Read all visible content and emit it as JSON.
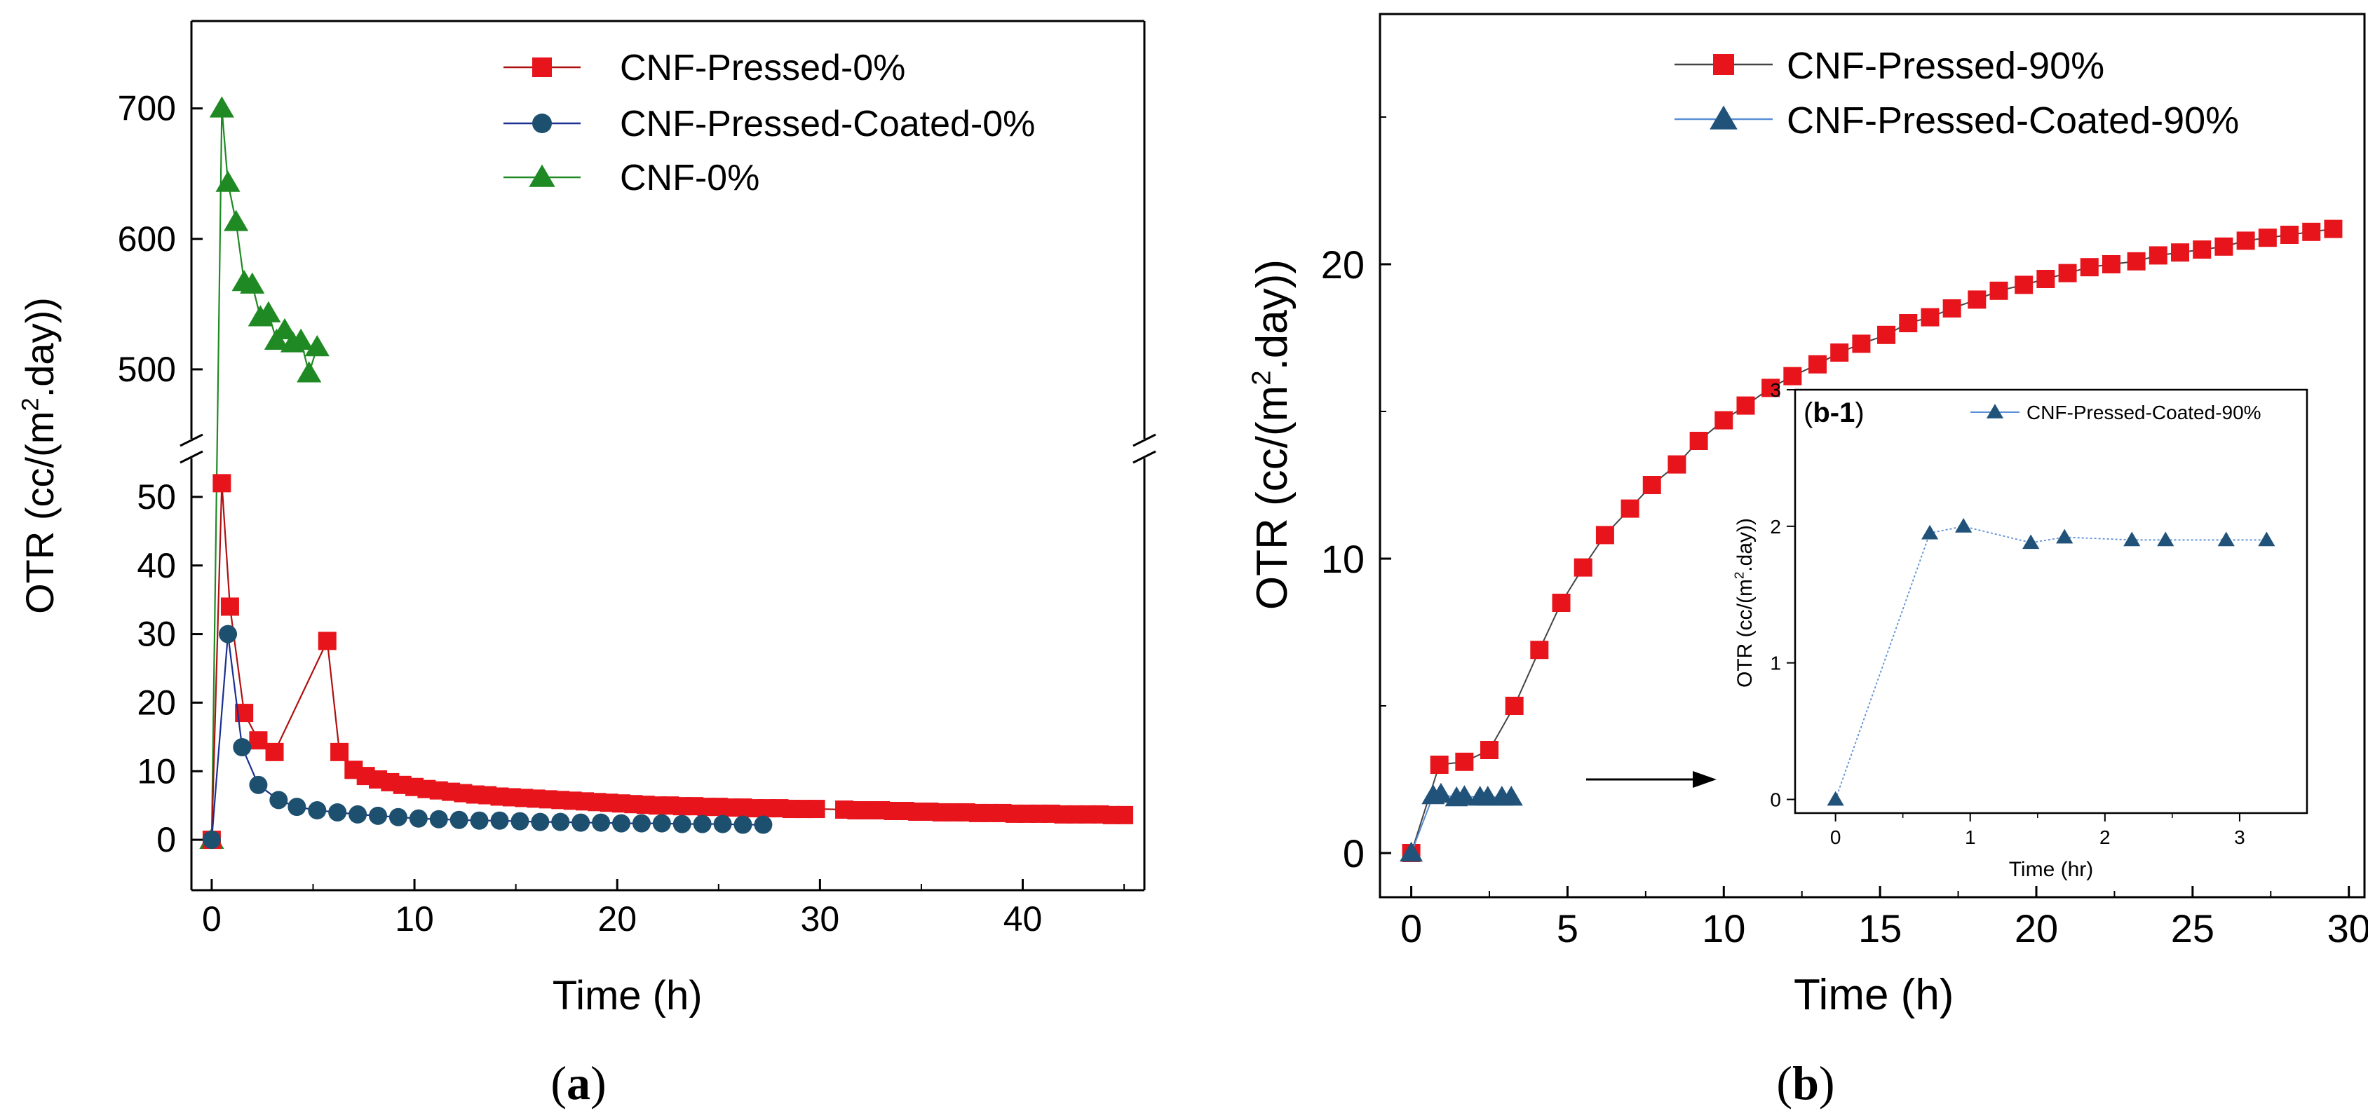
{
  "captions": {
    "a": "(a)",
    "b": "(b)"
  },
  "colors": {
    "red": "#e8141b",
    "red_line": "#b01010",
    "navy": "#1d4f6e",
    "navy_line": "#1a2f8f",
    "green": "#1f8a23",
    "steel": "#21527a",
    "inset_line": "#5b8fd6"
  },
  "chart_data": [
    {
      "id": "a",
      "type": "line",
      "xlabel": "Time (h)",
      "ylabel": "OTR (cc/(m².day))",
      "ylabel_parts": {
        "pre": "OTR (cc/(m",
        "sup": "2",
        "post": ".day))"
      },
      "xlim": [
        -1,
        46
      ],
      "xticks": [
        0,
        10,
        20,
        30,
        40
      ],
      "y_axis_break": {
        "lower_range": [
          -5,
          55
        ],
        "upper_range": [
          450,
          760
        ]
      },
      "yticks_lower": [
        0,
        10,
        20,
        30,
        40,
        50
      ],
      "yticks_upper": [
        500,
        600,
        700
      ],
      "legend_position": "top-right",
      "series": [
        {
          "name": "CNF-Pressed-0%",
          "marker": "square",
          "color": "#e8141b",
          "line_color": "#b01010",
          "x": [
            0,
            0.5,
            0.9,
            1.6,
            2.3,
            3.1,
            5.7,
            6.3,
            7.0,
            7.6,
            8.2,
            8.8,
            9.4,
            10.0,
            10.6,
            11.2,
            11.8,
            12.4,
            13.0,
            13.6,
            14.2,
            14.8,
            15.4,
            16.0,
            16.6,
            17.2,
            17.8,
            18.4,
            19.0,
            19.6,
            20.2,
            20.8,
            21.4,
            22.0,
            22.6,
            23.2,
            23.8,
            24.4,
            25.0,
            25.6,
            26.2,
            26.8,
            27.4,
            28.0,
            28.6,
            29.2,
            29.8,
            31.2,
            31.8,
            32.4,
            33.0,
            33.6,
            34.2,
            34.8,
            35.4,
            36.0,
            36.6,
            37.2,
            37.8,
            38.4,
            39.0,
            39.6,
            40.2,
            40.8,
            41.4,
            42.0,
            42.6,
            43.2,
            43.8,
            44.4,
            45.0
          ],
          "y": [
            0,
            52,
            34,
            18.5,
            14.5,
            12.8,
            29,
            12.8,
            10.2,
            9.3,
            8.8,
            8.4,
            8.0,
            7.7,
            7.4,
            7.2,
            7.0,
            6.8,
            6.6,
            6.5,
            6.3,
            6.2,
            6.1,
            6.0,
            5.9,
            5.8,
            5.7,
            5.6,
            5.5,
            5.4,
            5.3,
            5.2,
            5.1,
            5.0,
            5.0,
            4.9,
            4.9,
            4.8,
            4.8,
            4.7,
            4.7,
            4.6,
            4.6,
            4.6,
            4.5,
            4.5,
            4.5,
            4.4,
            4.3,
            4.3,
            4.3,
            4.2,
            4.2,
            4.1,
            4.1,
            4.0,
            4.0,
            4.0,
            3.9,
            3.9,
            3.9,
            3.8,
            3.8,
            3.8,
            3.8,
            3.7,
            3.7,
            3.7,
            3.7,
            3.6,
            3.6
          ]
        },
        {
          "name": "CNF-Pressed-Coated-0%",
          "marker": "circle",
          "color": "#1d4f6e",
          "line_color": "#1a2f8f",
          "x": [
            0,
            0.8,
            1.5,
            2.3,
            3.3,
            4.2,
            5.2,
            6.2,
            7.2,
            8.2,
            9.2,
            10.2,
            11.2,
            12.2,
            13.2,
            14.2,
            15.2,
            16.2,
            17.2,
            18.2,
            19.2,
            20.2,
            21.2,
            22.2,
            23.2,
            24.2,
            25.2,
            26.2,
            27.2
          ],
          "y": [
            0,
            30,
            13.5,
            8.0,
            5.8,
            4.8,
            4.3,
            4.0,
            3.7,
            3.5,
            3.3,
            3.1,
            3.0,
            2.9,
            2.8,
            2.8,
            2.7,
            2.6,
            2.6,
            2.5,
            2.5,
            2.4,
            2.4,
            2.4,
            2.3,
            2.3,
            2.3,
            2.2,
            2.2
          ]
        },
        {
          "name": "CNF-0%",
          "marker": "triangle",
          "color": "#1f8a23",
          "line_color": "#1f8a23",
          "x": [
            0,
            0.5,
            0.8,
            1.2,
            1.6,
            2.0,
            2.4,
            2.8,
            3.2,
            3.6,
            4.0,
            4.4,
            4.8,
            5.2
          ],
          "y": [
            0,
            700,
            643,
            613,
            567,
            565,
            540,
            543,
            522,
            530,
            520,
            522,
            497,
            517
          ]
        }
      ]
    },
    {
      "id": "b",
      "type": "line",
      "xlabel": "Time (h)",
      "ylabel": "OTR (cc/(m².day))",
      "ylabel_parts": {
        "pre": "OTR (cc/(m",
        "sup": "2",
        "post": ".day))"
      },
      "xlim": [
        -1,
        30.5
      ],
      "ylim": [
        -1.5,
        28.5
      ],
      "xticks": [
        0,
        5,
        10,
        15,
        20,
        25,
        30
      ],
      "yticks": [
        0,
        10,
        20
      ],
      "legend_position": "top-right",
      "series": [
        {
          "name": "CNF-Pressed-90%",
          "marker": "square",
          "color": "#e8141b",
          "line_color": "#444444",
          "x": [
            0,
            0.9,
            1.7,
            2.5,
            3.3,
            4.1,
            4.8,
            5.5,
            6.2,
            7.0,
            7.7,
            8.5,
            9.2,
            10.0,
            10.7,
            11.5,
            12.2,
            13.0,
            13.7,
            14.4,
            15.2,
            15.9,
            16.6,
            17.3,
            18.1,
            18.8,
            19.6,
            20.3,
            21.0,
            21.7,
            22.4,
            23.2,
            23.9,
            24.6,
            25.3,
            26.0,
            26.7,
            27.4,
            28.1,
            28.8,
            29.5
          ],
          "y": [
            0,
            3.0,
            3.1,
            3.5,
            5.0,
            6.9,
            8.5,
            9.7,
            10.8,
            11.7,
            12.5,
            13.2,
            14.0,
            14.7,
            15.2,
            15.8,
            16.2,
            16.6,
            17.0,
            17.3,
            17.6,
            18.0,
            18.2,
            18.5,
            18.8,
            19.1,
            19.3,
            19.5,
            19.7,
            19.9,
            20.0,
            20.1,
            20.3,
            20.4,
            20.5,
            20.6,
            20.8,
            20.9,
            21.0,
            21.1,
            21.2
          ]
        },
        {
          "name": "CNF-Pressed-Coated-90%",
          "marker": "triangle",
          "color": "#21527a",
          "line_color": "#5b8fd6",
          "x": [
            0,
            0.7,
            0.95,
            1.45,
            1.7,
            2.2,
            2.45,
            2.9,
            3.2
          ],
          "y": [
            0,
            1.95,
            2.0,
            1.88,
            1.92,
            1.9,
            1.9,
            1.9,
            1.9
          ]
        }
      ],
      "inset": {
        "label": "(b-1)",
        "label_parts": {
          "bold": "b-1"
        },
        "xlabel": "Time (hr)",
        "ylabel": "OTR (cc/(m².day))",
        "ylabel_parts": {
          "pre": "OTR (cc/(m",
          "sup": "2",
          "post": ".day))"
        },
        "xlim": [
          -0.3,
          3.5
        ],
        "ylim": [
          -0.1,
          3.0
        ],
        "xticks": [
          0,
          1,
          2,
          3
        ],
        "yticks": [
          0,
          1,
          2,
          3
        ],
        "legend_position": "top-right",
        "series": [
          {
            "name": "CNF-Pressed-Coated-90%",
            "marker": "triangle",
            "color": "#21527a",
            "line_color": "#5b8fd6",
            "x": [
              0,
              0.7,
              0.95,
              1.45,
              1.7,
              2.2,
              2.45,
              2.9,
              3.2
            ],
            "y": [
              0,
              1.95,
              2.0,
              1.88,
              1.92,
              1.9,
              1.9,
              1.9,
              1.9
            ]
          }
        ]
      }
    }
  ]
}
